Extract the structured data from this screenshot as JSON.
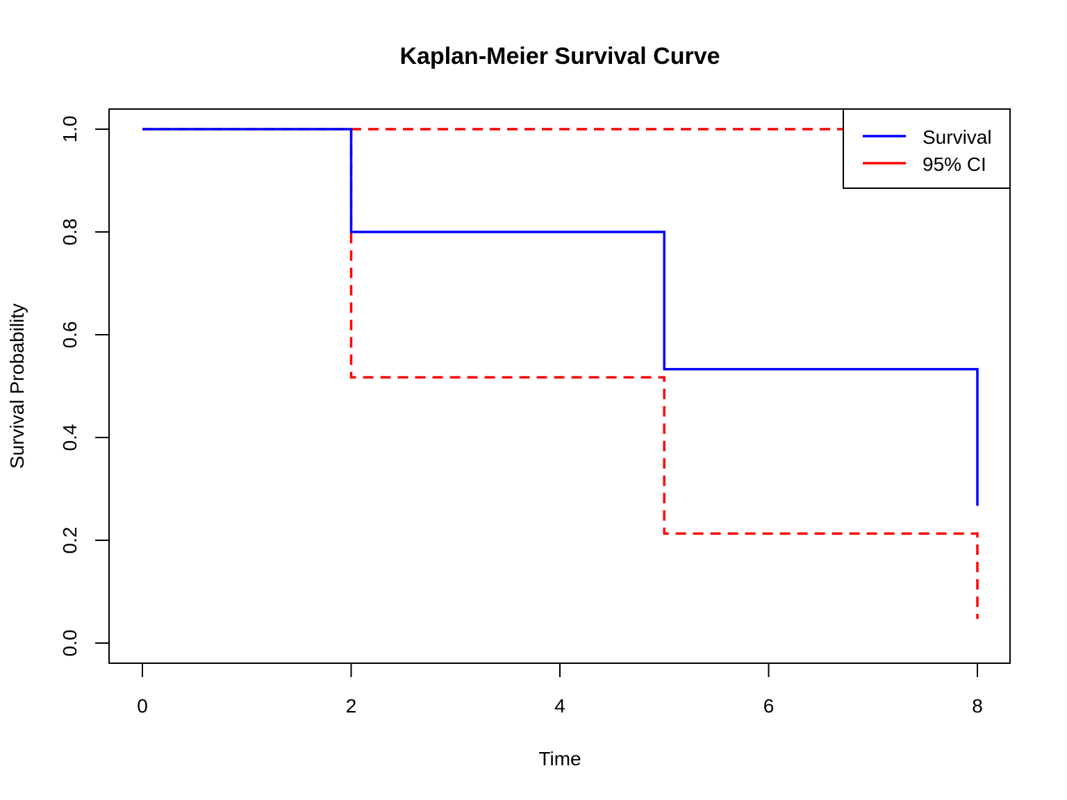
{
  "chart_data": {
    "type": "line",
    "title": "Kaplan-Meier Survival Curve",
    "xlabel": "Time",
    "ylabel": "Survival Probability",
    "xlim": [
      0,
      8
    ],
    "ylim": [
      0,
      1
    ],
    "x_ticks": [
      "0",
      "2",
      "4",
      "6",
      "8"
    ],
    "y_ticks": [
      "0.0",
      "0.2",
      "0.4",
      "0.6",
      "0.8",
      "1.0"
    ],
    "grid": false,
    "legend_position": "top-right",
    "series": [
      {
        "name": "Survival",
        "color": "#0000ff",
        "dash": "solid",
        "step": true,
        "x": [
          0,
          2,
          5,
          8
        ],
        "y": [
          1.0,
          0.8,
          0.533,
          0.267
        ]
      },
      {
        "name": "95% CI",
        "color": "#ff0000",
        "dash": "dashed",
        "step": true,
        "x": [
          0,
          2,
          5,
          8
        ],
        "y": [
          1.0,
          1.0,
          1.0,
          1.0
        ]
      },
      {
        "name": "95% CI",
        "color": "#ff0000",
        "dash": "dashed",
        "step": true,
        "x": [
          0,
          2,
          5,
          8
        ],
        "y": [
          1.0,
          0.517,
          0.213,
          0.047
        ]
      }
    ],
    "legend": [
      {
        "label": "Survival",
        "color": "#0000ff"
      },
      {
        "label": "95% CI",
        "color": "#ff0000"
      }
    ]
  }
}
